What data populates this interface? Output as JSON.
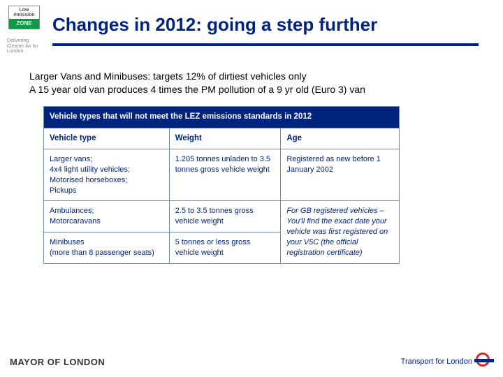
{
  "badge": {
    "top_line1": "Low",
    "top_line2": "emission",
    "zone": "ZONE",
    "tagline": "Delivering Cleaner Air for London"
  },
  "title": "Changes in 2012: going a step further",
  "intro_line1": "Larger Vans and Minibuses: targets 12% of dirtiest vehicles only",
  "intro_line2": "A  15 year old van produces 4 times the PM pollution of a 9 yr old (Euro 3) van",
  "table": {
    "header": "Vehicle types that will not meet the LEZ emissions standards in 2012",
    "columns": {
      "type": "Vehicle type",
      "weight": "Weight",
      "age": "Age"
    },
    "rows": [
      {
        "type": "Larger vans;\n4x4 light utility vehicles;\nMotorised horseboxes;\nPickups",
        "weight": "1.205 tonnes unladen to 3.5 tonnes gross vehicle weight",
        "age": "Registered as new before 1 January 2002"
      },
      {
        "type": "Ambulances;\nMotorcaravans",
        "weight": "2.5 to 3.5 tonnes gross vehicle weight",
        "age_span": "For GB registered vehicles – You'll find the exact date your vehicle was first registered on your V5C (the official registration certificate)"
      },
      {
        "type": "Minibuses\n(more than 8 passenger seats)",
        "weight": "5 tonnes or less gross vehicle weight"
      }
    ]
  },
  "footer": {
    "mayor": "MAYOR OF LONDON",
    "tfl": "Transport for London"
  },
  "colors": {
    "navy": "#00247d",
    "red": "#d52b1e",
    "green": "#0a9b47",
    "cell_border": "#6f8ba8"
  }
}
